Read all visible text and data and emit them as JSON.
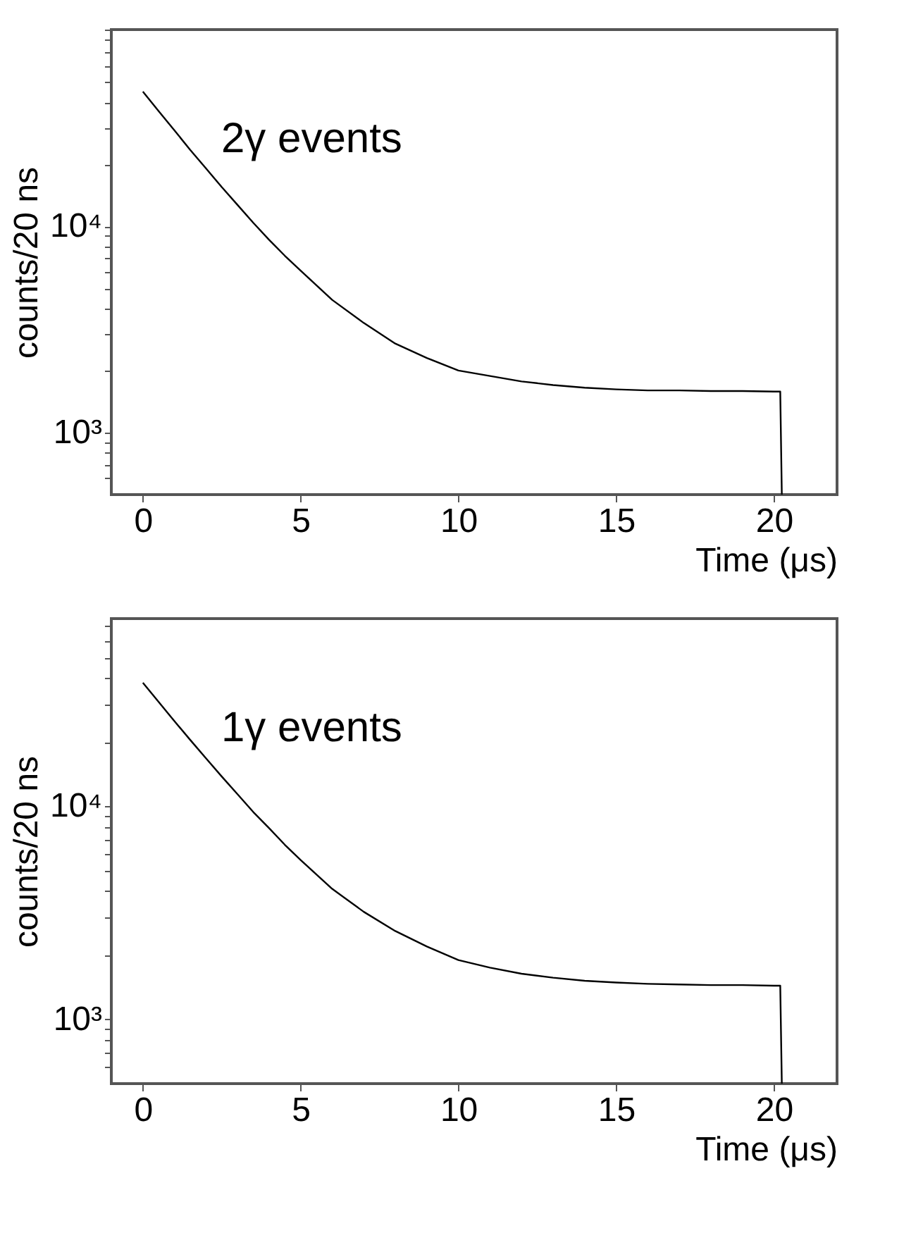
{
  "chart_data": [
    {
      "type": "line",
      "annotations": [
        "2γ events"
      ],
      "xlabel": "Time (μs)",
      "ylabel": "counts/20 ns",
      "log": "y",
      "grid": false,
      "marker": "none",
      "line_style": "solid",
      "xlim": [
        -1,
        22
      ],
      "xticks": [
        0,
        5,
        10,
        15,
        20
      ],
      "ylim": [
        500,
        90000
      ],
      "yticks": [
        {
          "value": 600,
          "label": null
        },
        {
          "value": 700,
          "label": null
        },
        {
          "value": 800,
          "label": null
        },
        {
          "value": 900,
          "label": null
        },
        {
          "value": 1000,
          "label": "10³"
        },
        {
          "value": 2000,
          "label": null
        },
        {
          "value": 3000,
          "label": null
        },
        {
          "value": 4000,
          "label": null
        },
        {
          "value": 5000,
          "label": null
        },
        {
          "value": 6000,
          "label": null
        },
        {
          "value": 7000,
          "label": null
        },
        {
          "value": 8000,
          "label": null
        },
        {
          "value": 9000,
          "label": null
        },
        {
          "value": 10000,
          "label": "10⁴"
        },
        {
          "value": 20000,
          "label": null
        },
        {
          "value": 30000,
          "label": null
        },
        {
          "value": 40000,
          "label": null
        },
        {
          "value": 50000,
          "label": null
        },
        {
          "value": 60000,
          "label": null
        },
        {
          "value": 70000,
          "label": null
        },
        {
          "value": 80000,
          "label": null
        },
        {
          "value": 90000,
          "label": null
        }
      ],
      "series": [
        {
          "color": "#000000",
          "x": [
            0,
            0.5,
            1,
            1.5,
            2,
            2.5,
            3,
            3.5,
            4,
            4.5,
            5,
            6,
            7,
            8,
            9,
            10,
            11,
            12,
            13,
            14,
            15,
            16,
            17,
            18,
            19,
            20,
            20.2,
            20.25
          ],
          "values": [
            45000,
            36200,
            29200,
            23500,
            19100,
            15500,
            12700,
            10400,
            8600,
            7200,
            6100,
            4400,
            3400,
            2700,
            2300,
            2000,
            1880,
            1770,
            1700,
            1650,
            1620,
            1600,
            1600,
            1590,
            1590,
            1580,
            1580,
            500
          ]
        }
      ]
    },
    {
      "type": "line",
      "annotations": [
        "1γ events"
      ],
      "xlabel": "Time (μs)",
      "ylabel": "counts/20 ns",
      "log": "y",
      "grid": false,
      "marker": "none",
      "line_style": "solid",
      "xlim": [
        -1,
        22
      ],
      "xticks": [
        0,
        5,
        10,
        15,
        20
      ],
      "ylim": [
        500,
        76000
      ],
      "yticks": [
        {
          "value": 600,
          "label": null
        },
        {
          "value": 700,
          "label": null
        },
        {
          "value": 800,
          "label": null
        },
        {
          "value": 900,
          "label": null
        },
        {
          "value": 1000,
          "label": "10³"
        },
        {
          "value": 2000,
          "label": null
        },
        {
          "value": 3000,
          "label": null
        },
        {
          "value": 4000,
          "label": null
        },
        {
          "value": 5000,
          "label": null
        },
        {
          "value": 6000,
          "label": null
        },
        {
          "value": 7000,
          "label": null
        },
        {
          "value": 8000,
          "label": null
        },
        {
          "value": 9000,
          "label": null
        },
        {
          "value": 10000,
          "label": "10⁴"
        },
        {
          "value": 20000,
          "label": null
        },
        {
          "value": 30000,
          "label": null
        },
        {
          "value": 40000,
          "label": null
        },
        {
          "value": 50000,
          "label": null
        },
        {
          "value": 60000,
          "label": null
        },
        {
          "value": 70000,
          "label": null
        }
      ],
      "series": [
        {
          "color": "#000000",
          "x": [
            0,
            0.5,
            1,
            1.5,
            2,
            2.5,
            3,
            3.5,
            4,
            4.5,
            5,
            6,
            7,
            8,
            9,
            10,
            11,
            12,
            13,
            14,
            15,
            16,
            17,
            18,
            19,
            20,
            20.2,
            20.25
          ],
          "values": [
            38000,
            30900,
            25100,
            20500,
            16800,
            13800,
            11400,
            9400,
            7900,
            6600,
            5600,
            4100,
            3200,
            2600,
            2200,
            1900,
            1750,
            1640,
            1570,
            1520,
            1490,
            1470,
            1460,
            1450,
            1450,
            1440,
            1440,
            500
          ]
        }
      ]
    }
  ]
}
